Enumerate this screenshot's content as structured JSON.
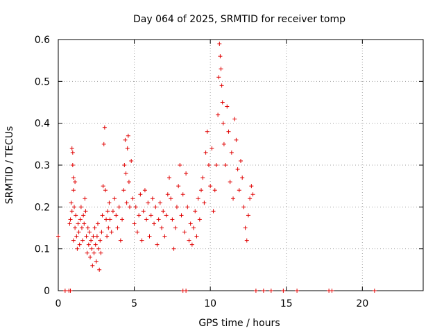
{
  "chart_data": {
    "type": "scatter",
    "title": "Day 064 of 2025, SRMTID for receiver tomp",
    "xlabel": "GPS time / hours",
    "ylabel": "SRMTID / TECUs",
    "xlim": [
      0,
      24
    ],
    "ylim": [
      0,
      0.6
    ],
    "x_ticks": [
      0,
      5,
      10,
      15,
      20
    ],
    "x_tick_labels": [
      "0",
      "5",
      "10",
      "15",
      "20"
    ],
    "y_ticks": [
      0,
      0.1,
      0.2,
      0.3,
      0.4,
      0.5,
      0.6
    ],
    "y_tick_labels": [
      "0",
      "0.1",
      "0.2",
      "0.3",
      "0.4",
      "0.5",
      "0.6"
    ],
    "grid": true,
    "marker": "plus",
    "color": "#e00000",
    "series": [
      {
        "name": "SRMTID",
        "points": [
          [
            0.0,
            0.13
          ],
          [
            0.45,
            0.0
          ],
          [
            0.7,
            0.0
          ],
          [
            0.75,
            0.16
          ],
          [
            0.8,
            0.17
          ],
          [
            0.85,
            0.21
          ],
          [
            0.9,
            0.19
          ],
          [
            0.9,
            0.34
          ],
          [
            0.95,
            0.33
          ],
          [
            0.95,
            0.3
          ],
          [
            1.0,
            0.27
          ],
          [
            1.0,
            0.24
          ],
          [
            1.05,
            0.2
          ],
          [
            1.0,
            0.12
          ],
          [
            1.1,
            0.15
          ],
          [
            1.1,
            0.26
          ],
          [
            1.15,
            0.18
          ],
          [
            1.2,
            0.13
          ],
          [
            1.25,
            0.1
          ],
          [
            1.3,
            0.16
          ],
          [
            1.35,
            0.14
          ],
          [
            1.4,
            0.11
          ],
          [
            1.45,
            0.17
          ],
          [
            1.5,
            0.2
          ],
          [
            1.55,
            0.15
          ],
          [
            1.6,
            0.12
          ],
          [
            1.65,
            0.18
          ],
          [
            1.7,
            0.16
          ],
          [
            1.75,
            0.22
          ],
          [
            1.8,
            0.19
          ],
          [
            1.85,
            0.13
          ],
          [
            1.9,
            0.09
          ],
          [
            1.95,
            0.15
          ],
          [
            2.0,
            0.11
          ],
          [
            2.05,
            0.14
          ],
          [
            2.1,
            0.08
          ],
          [
            2.15,
            0.12
          ],
          [
            2.2,
            0.1
          ],
          [
            2.25,
            0.06
          ],
          [
            2.3,
            0.13
          ],
          [
            2.35,
            0.09
          ],
          [
            2.4,
            0.15
          ],
          [
            2.45,
            0.11
          ],
          [
            2.5,
            0.07
          ],
          [
            2.55,
            0.13
          ],
          [
            2.6,
            0.16
          ],
          [
            2.65,
            0.1
          ],
          [
            2.7,
            0.05
          ],
          [
            2.75,
            0.12
          ],
          [
            2.8,
            0.09
          ],
          [
            2.85,
            0.14
          ],
          [
            2.9,
            0.18
          ],
          [
            2.95,
            0.25
          ],
          [
            3.0,
            0.35
          ],
          [
            3.05,
            0.39
          ],
          [
            3.1,
            0.24
          ],
          [
            3.15,
            0.17
          ],
          [
            3.2,
            0.13
          ],
          [
            3.25,
            0.19
          ],
          [
            3.3,
            0.15
          ],
          [
            3.35,
            0.21
          ],
          [
            3.4,
            0.17
          ],
          [
            3.5,
            0.14
          ],
          [
            3.6,
            0.19
          ],
          [
            3.7,
            0.22
          ],
          [
            3.8,
            0.18
          ],
          [
            3.9,
            0.15
          ],
          [
            4.0,
            0.2
          ],
          [
            4.1,
            0.12
          ],
          [
            4.2,
            0.17
          ],
          [
            4.3,
            0.24
          ],
          [
            4.35,
            0.3
          ],
          [
            4.4,
            0.36
          ],
          [
            4.45,
            0.28
          ],
          [
            4.5,
            0.21
          ],
          [
            4.55,
            0.34
          ],
          [
            4.6,
            0.37
          ],
          [
            4.65,
            0.26
          ],
          [
            4.7,
            0.2
          ],
          [
            4.8,
            0.31
          ],
          [
            4.9,
            0.22
          ],
          [
            5.0,
            0.16
          ],
          [
            5.1,
            0.2
          ],
          [
            5.2,
            0.14
          ],
          [
            5.3,
            0.18
          ],
          [
            5.4,
            0.23
          ],
          [
            5.5,
            0.12
          ],
          [
            5.6,
            0.19
          ],
          [
            5.7,
            0.24
          ],
          [
            5.8,
            0.17
          ],
          [
            5.9,
            0.21
          ],
          [
            6.0,
            0.13
          ],
          [
            6.1,
            0.18
          ],
          [
            6.2,
            0.22
          ],
          [
            6.3,
            0.16
          ],
          [
            6.4,
            0.2
          ],
          [
            6.5,
            0.11
          ],
          [
            6.6,
            0.17
          ],
          [
            6.7,
            0.21
          ],
          [
            6.8,
            0.15
          ],
          [
            6.9,
            0.19
          ],
          [
            7.0,
            0.13
          ],
          [
            7.1,
            0.18
          ],
          [
            7.2,
            0.23
          ],
          [
            7.3,
            0.27
          ],
          [
            7.4,
            0.22
          ],
          [
            7.5,
            0.17
          ],
          [
            7.6,
            0.1
          ],
          [
            7.7,
            0.15
          ],
          [
            7.8,
            0.2
          ],
          [
            7.9,
            0.25
          ],
          [
            8.0,
            0.3
          ],
          [
            8.1,
            0.18
          ],
          [
            8.2,
            0.23
          ],
          [
            8.3,
            0.14
          ],
          [
            8.4,
            0.28
          ],
          [
            8.5,
            0.2
          ],
          [
            8.6,
            0.12
          ],
          [
            8.7,
            0.16
          ],
          [
            8.8,
            0.11
          ],
          [
            8.9,
            0.15
          ],
          [
            9.0,
            0.19
          ],
          [
            9.1,
            0.13
          ],
          [
            9.2,
            0.22
          ],
          [
            9.3,
            0.17
          ],
          [
            9.4,
            0.24
          ],
          [
            9.5,
            0.27
          ],
          [
            9.6,
            0.21
          ],
          [
            9.7,
            0.33
          ],
          [
            9.8,
            0.38
          ],
          [
            9.9,
            0.3
          ],
          [
            10.0,
            0.25
          ],
          [
            10.1,
            0.34
          ],
          [
            10.2,
            0.19
          ],
          [
            10.3,
            0.24
          ],
          [
            10.4,
            0.3
          ],
          [
            10.5,
            0.42
          ],
          [
            10.55,
            0.51
          ],
          [
            10.6,
            0.59
          ],
          [
            10.65,
            0.56
          ],
          [
            10.7,
            0.53
          ],
          [
            10.75,
            0.49
          ],
          [
            10.8,
            0.45
          ],
          [
            10.85,
            0.4
          ],
          [
            10.9,
            0.35
          ],
          [
            11.0,
            0.3
          ],
          [
            11.1,
            0.44
          ],
          [
            11.2,
            0.38
          ],
          [
            11.3,
            0.26
          ],
          [
            11.4,
            0.33
          ],
          [
            11.5,
            0.22
          ],
          [
            11.6,
            0.41
          ],
          [
            11.7,
            0.36
          ],
          [
            11.8,
            0.29
          ],
          [
            11.9,
            0.24
          ],
          [
            12.0,
            0.31
          ],
          [
            12.1,
            0.27
          ],
          [
            12.2,
            0.2
          ],
          [
            12.3,
            0.15
          ],
          [
            12.4,
            0.12
          ],
          [
            12.5,
            0.18
          ],
          [
            12.6,
            0.22
          ],
          [
            12.7,
            0.25
          ],
          [
            12.8,
            0.23
          ],
          [
            13.0,
            0.0
          ],
          [
            13.5,
            0.0
          ],
          [
            14.0,
            0.0
          ],
          [
            14.8,
            0.0
          ],
          [
            15.7,
            0.0
          ],
          [
            17.8,
            0.0
          ],
          [
            18.0,
            0.0
          ],
          [
            20.8,
            0.0
          ],
          [
            8.2,
            0.0
          ],
          [
            8.4,
            0.0
          ],
          [
            0.8,
            0.0
          ]
        ]
      }
    ]
  }
}
